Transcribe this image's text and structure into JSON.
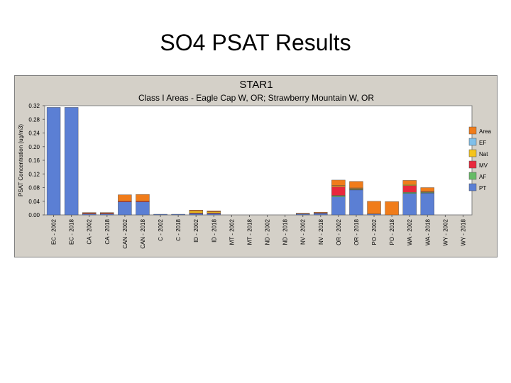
{
  "slide": {
    "title": "SO4 PSAT Results"
  },
  "chart_data": {
    "type": "bar",
    "stacked": true,
    "title": "STAR1",
    "subtitle": "Class I Areas - Eagle Cap W, OR; Strawberry Mountain W, OR",
    "ylabel": "PSAT Concentration (ug/m3)",
    "xlabel": "",
    "ylim": [
      0,
      0.32
    ],
    "yticks": [
      "0.00",
      "0.04",
      "0.08",
      "0.12",
      "0.16",
      "0.20",
      "0.24",
      "0.28",
      "0.32"
    ],
    "grid": false,
    "legend_position": "right",
    "categories": [
      "EC - 2002",
      "EC - 2018",
      "CA - 2002",
      "CA - 2018",
      "CAN - 2002",
      "CAN - 2018",
      "C - 2002",
      "C - 2018",
      "ID - 2002",
      "ID - 2018",
      "MT - 2002",
      "MT - 2018",
      "ND - 2002",
      "ND - 2018",
      "NV - 2002",
      "NV - 2018",
      "OR - 2002",
      "OR - 2018",
      "PO - 2002",
      "PO - 2018",
      "WA - 2002",
      "WA - 2018",
      "WY - 2002",
      "WY - 2018"
    ],
    "series": [
      {
        "name": "PT",
        "color": "#5b7fd4",
        "values": [
          0.315,
          0.315,
          0.003,
          0.003,
          0.038,
          0.038,
          0.002,
          0.002,
          0.004,
          0.004,
          0,
          0,
          0,
          0,
          0.003,
          0.005,
          0.053,
          0.073,
          0.003,
          0,
          0.063,
          0.064,
          0,
          0
        ]
      },
      {
        "name": "AF",
        "color": "#66bb66",
        "values": [
          0,
          0,
          0,
          0,
          0,
          0,
          0,
          0,
          0,
          0,
          0,
          0,
          0,
          0,
          0,
          0,
          0.004,
          0.002,
          0,
          0,
          0.003,
          0.002,
          0,
          0
        ]
      },
      {
        "name": "MV",
        "color": "#e8283c",
        "values": [
          0,
          0,
          0.002,
          0.002,
          0.002,
          0.002,
          0,
          0,
          0.002,
          0.002,
          0,
          0,
          0,
          0,
          0.001,
          0.001,
          0.026,
          0.002,
          0,
          0,
          0.02,
          0.002,
          0,
          0
        ]
      },
      {
        "name": "Nat",
        "color": "#f5c41c",
        "values": [
          0,
          0,
          0,
          0,
          0,
          0,
          0,
          0,
          0.005,
          0.003,
          0,
          0,
          0,
          0,
          0,
          0,
          0.003,
          0.002,
          0,
          0,
          0.003,
          0.002,
          0,
          0
        ]
      },
      {
        "name": "EF",
        "color": "#7fbfea",
        "values": [
          0,
          0,
          0,
          0,
          0,
          0,
          0,
          0,
          0,
          0,
          0,
          0,
          0,
          0,
          0,
          0,
          0,
          0,
          0,
          0,
          0,
          0,
          0,
          0
        ]
      },
      {
        "name": "Area",
        "color": "#f07c1a",
        "values": [
          0,
          0,
          0.002,
          0.002,
          0.019,
          0.02,
          0,
          0,
          0.003,
          0.003,
          0,
          0,
          0,
          0,
          0.001,
          0.002,
          0.016,
          0.019,
          0.037,
          0.039,
          0.012,
          0.01,
          0,
          0
        ]
      }
    ]
  }
}
